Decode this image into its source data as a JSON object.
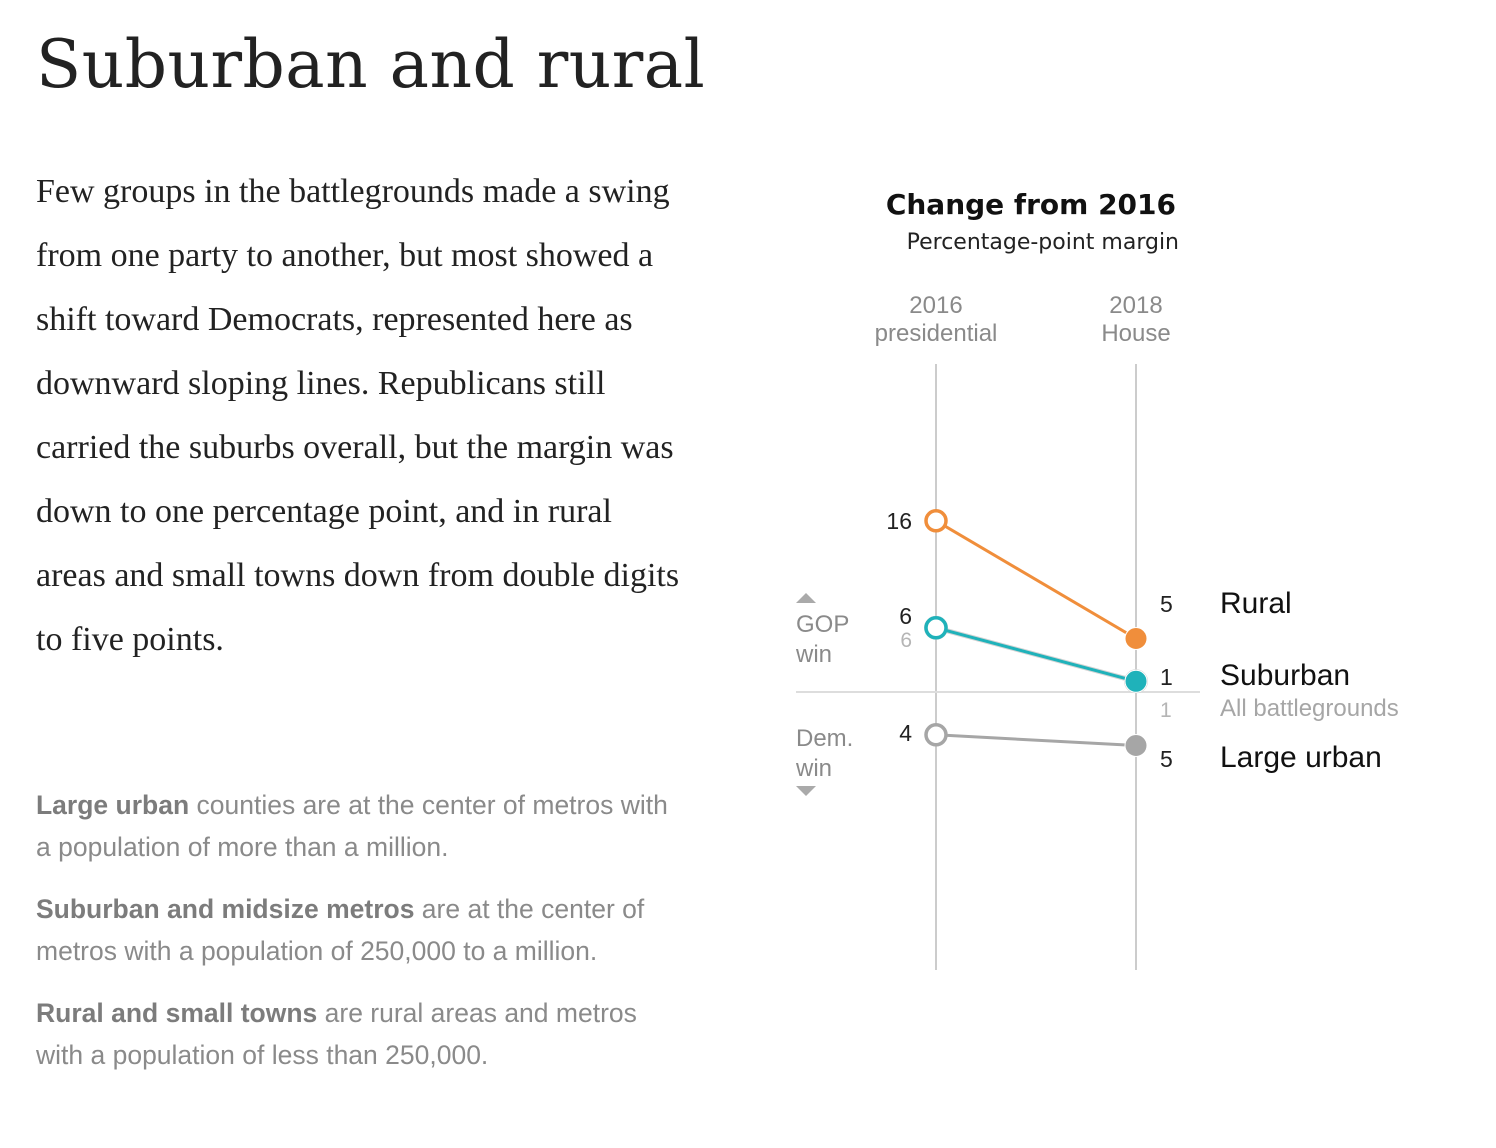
{
  "headline": "Suburban and rural",
  "body_paragraph": "Few groups in the battlegrounds made a swing from one party to another, but most showed a shift toward Democrats, represented here as downward sloping lines. Republicans still carried the suburbs overall, but the margin was down to one percentage point, and in rural areas and small towns down from double digits to five points.",
  "definitions": [
    {
      "term": "Large urban",
      "text": " counties are at the center of metros with a population of more than a million."
    },
    {
      "term": "Suburban and midsize metros",
      "text": " are at the center of metros with a population of 250,000 to a million."
    },
    {
      "term": "Rural and small towns",
      "text": " are rural areas and metros with a population of less than 250,000."
    }
  ],
  "chart_data": {
    "type": "line",
    "title": "Change from 2016",
    "subtitle": "Percentage-point margin",
    "categories": [
      {
        "line1": "2016",
        "line2": "presidential"
      },
      {
        "line1": "2018",
        "line2": "House"
      }
    ],
    "side_labels": {
      "top": [
        "GOP",
        "win"
      ],
      "bottom": [
        "Dem.",
        "win"
      ]
    },
    "note": "Signed values: positive = GOP win margin, negative = Democratic win margin; labels print absolute values.",
    "ylim": [
      -25,
      25
    ],
    "series": [
      {
        "name": "Rural",
        "values": [
          16,
          5
        ],
        "color": "#f08e3b",
        "emphasis": true
      },
      {
        "name": "All battlegrounds",
        "values": [
          6,
          1
        ],
        "color": "#d3d3d3",
        "emphasis": false
      },
      {
        "name": "Suburban",
        "values": [
          6,
          1
        ],
        "color": "#1fb2ba",
        "emphasis": true
      },
      {
        "name": "Large urban",
        "values": [
          -4,
          -5
        ],
        "color": "#a6a6a6",
        "emphasis": true
      }
    ],
    "value_labels_start": [
      "16",
      "6",
      "6",
      "4"
    ],
    "value_labels_end": [
      "5",
      "1",
      "1",
      "5"
    ],
    "grid": false,
    "legend": "direct labels at right"
  }
}
